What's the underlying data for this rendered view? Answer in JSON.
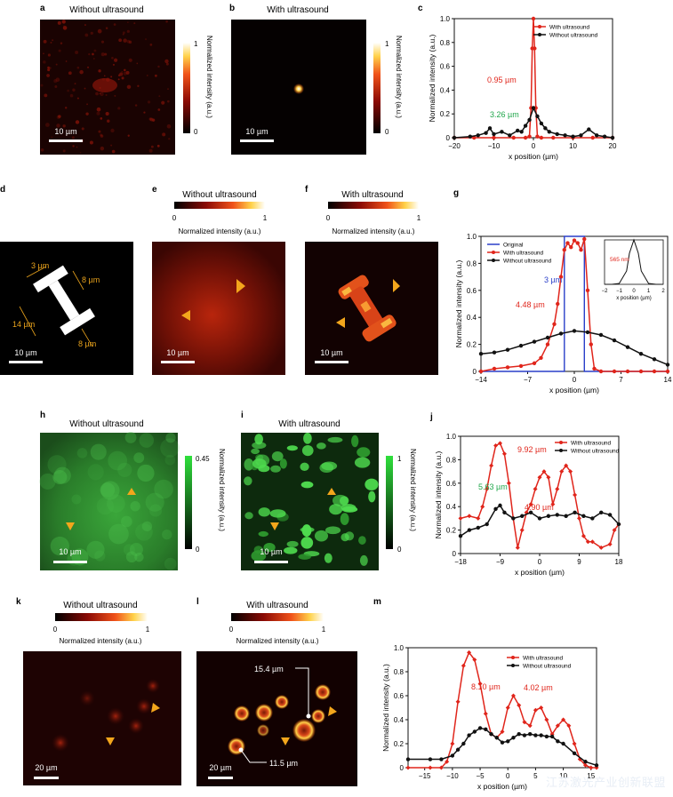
{
  "panels": {
    "a": {
      "letter": "a",
      "title": "Without ultrasound",
      "scale": "10 µm",
      "cb_max": "1",
      "cb_min": "0",
      "cb_label": "Normalized intensity (a.u.)"
    },
    "b": {
      "letter": "b",
      "title": "With ultrasound",
      "scale": "10 µm",
      "cb_max": "1",
      "cb_min": "0",
      "cb_label": "Normalized intensity (a.u.)"
    },
    "d": {
      "letter": "d",
      "scale": "10 µm",
      "dims": [
        "3 µm",
        "8 µm",
        "14 µm",
        "8 µm"
      ]
    },
    "e": {
      "letter": "e",
      "title": "Without ultrasound",
      "scale": "10 µm",
      "cb_min": "0",
      "cb_max": "1",
      "cb_label": "Normalized intensity (a.u.)"
    },
    "f": {
      "letter": "f",
      "title": "With ultrasound",
      "scale": "10 µm",
      "cb_min": "0",
      "cb_max": "1",
      "cb_label": "Normalized intensity (a.u.)"
    },
    "h": {
      "letter": "h",
      "title": "Without ultrasound",
      "scale": "10 µm",
      "cb_max": "0.45",
      "cb_min": "0",
      "cb_label": "Normalized intensity (a.u.)"
    },
    "i": {
      "letter": "i",
      "title": "With ultrasound",
      "scale": "10 µm",
      "cb_max": "1",
      "cb_min": "0",
      "cb_label": "Normalized intensity (a.u.)"
    },
    "k": {
      "letter": "k",
      "title": "Without ultrasound",
      "scale": "20 µm",
      "cb_min": "0",
      "cb_max": "1",
      "cb_label": "Normalized intensity (a.u.)"
    },
    "l": {
      "letter": "l",
      "title": "With ultrasound",
      "scale": "20 µm",
      "cb_min": "0",
      "cb_max": "1",
      "cb_label": "Normalized intensity (a.u.)",
      "callouts": [
        "15.4 µm",
        "11.5 µm"
      ]
    }
  },
  "watermark": "江苏激光产业创新联盟",
  "chart_data": [
    {
      "id": "c",
      "letter": "c",
      "type": "line",
      "xlabel": "x position (µm)",
      "ylabel": "Normalized intensity (a.u.)",
      "xlim": [
        -20,
        20
      ],
      "ylim": [
        0,
        1.0
      ],
      "xticks": [
        -20,
        -10,
        0,
        10,
        20
      ],
      "yticks": [
        0,
        0.2,
        0.4,
        0.6,
        0.8,
        1.0
      ],
      "series": [
        {
          "name": "With ultrasound",
          "color": "#e0251b",
          "x": [
            -20,
            -15,
            -10,
            -5,
            -2,
            -1,
            -0.6,
            -0.3,
            0,
            0.3,
            0.6,
            1,
            2,
            5,
            10,
            15,
            20
          ],
          "y": [
            0,
            0,
            0,
            0,
            0,
            0.01,
            0.25,
            0.75,
            1.0,
            0.75,
            0.25,
            0.01,
            0,
            0,
            0,
            0,
            0
          ]
        },
        {
          "name": "Without ultrasound",
          "color": "#111111",
          "x": [
            -20,
            -16,
            -14,
            -12,
            -11,
            -10,
            -8,
            -6,
            -4,
            -3,
            -2,
            -1,
            0,
            1,
            2,
            3,
            4,
            6,
            8,
            10,
            12,
            14,
            16,
            18,
            20
          ],
          "y": [
            0,
            0.01,
            0.02,
            0.04,
            0.08,
            0.03,
            0.05,
            0.02,
            0.06,
            0.05,
            0.1,
            0.15,
            0.25,
            0.18,
            0.12,
            0.08,
            0.05,
            0.03,
            0.02,
            0.01,
            0.02,
            0.07,
            0.02,
            0.01,
            0
          ]
        }
      ],
      "annotations": [
        {
          "text": "0.95 µm",
          "color": "#e0251b"
        },
        {
          "text": "3.26 µm",
          "color": "#1fa64a"
        }
      ]
    },
    {
      "id": "g",
      "letter": "g",
      "type": "line",
      "xlabel": "x position (µm)",
      "ylabel": "Normalized intensity (a.u.)",
      "xlim": [
        -14,
        14
      ],
      "ylim": [
        0,
        1.0
      ],
      "xticks": [
        -14,
        -7,
        0,
        7,
        14
      ],
      "yticks": [
        0,
        0.2,
        0.4,
        0.6,
        0.8,
        1.0
      ],
      "series": [
        {
          "name": "Original",
          "color": "#2a3fc9",
          "x": [
            -14,
            -1.5,
            -1.5,
            1.5,
            1.5,
            14
          ],
          "y": [
            0,
            0,
            1,
            1,
            0,
            0
          ]
        },
        {
          "name": "With ultrasound",
          "color": "#e0251b",
          "x": [
            -14,
            -12,
            -10,
            -8,
            -6,
            -5,
            -4,
            -3,
            -2.5,
            -2,
            -1.5,
            -1,
            -0.5,
            0,
            0.5,
            1,
            1.5,
            2,
            2.5,
            3,
            4,
            6,
            8,
            10,
            12,
            14
          ],
          "y": [
            0,
            0.02,
            0.03,
            0.04,
            0.06,
            0.1,
            0.2,
            0.35,
            0.5,
            0.7,
            0.9,
            0.95,
            0.92,
            0.97,
            0.95,
            0.9,
            0.98,
            0.6,
            0.2,
            0.02,
            0,
            0,
            0,
            0,
            0,
            0
          ]
        },
        {
          "name": "Without ultrasound",
          "color": "#111111",
          "x": [
            -14,
            -12,
            -10,
            -8,
            -6,
            -4,
            -2,
            0,
            2,
            4,
            6,
            8,
            10,
            12,
            14
          ],
          "y": [
            0.13,
            0.14,
            0.16,
            0.19,
            0.22,
            0.25,
            0.28,
            0.3,
            0.29,
            0.27,
            0.23,
            0.18,
            0.13,
            0.09,
            0.05
          ]
        }
      ],
      "annotations": [
        {
          "text": "3 µm",
          "color": "#2a3fc9"
        },
        {
          "text": "4.48 µm",
          "color": "#e0251b"
        }
      ],
      "inset": {
        "xlabel": "x position (µm)",
        "xlim": [
          -2,
          2
        ],
        "xticks": [
          -2,
          -1,
          0,
          1,
          2
        ],
        "label": "565 nm",
        "x": [
          -2,
          -1.5,
          -1,
          -0.5,
          -0.3,
          0,
          0.3,
          0.5,
          1,
          1.5,
          2
        ],
        "y": [
          0,
          0,
          0.02,
          0.3,
          0.7,
          1.0,
          0.7,
          0.3,
          0.02,
          0,
          0
        ]
      }
    },
    {
      "id": "j",
      "letter": "j",
      "type": "line",
      "xlabel": "x position (µm)",
      "ylabel": "Normalized intensity (a.u.)",
      "xlim": [
        -18,
        18
      ],
      "ylim": [
        0,
        1.0
      ],
      "xticks": [
        -18,
        -9,
        0,
        9,
        18
      ],
      "yticks": [
        0,
        0.2,
        0.4,
        0.6,
        0.8,
        1.0
      ],
      "series": [
        {
          "name": "With ultrasound",
          "color": "#e0251b",
          "x": [
            -18,
            -16,
            -14,
            -13,
            -12,
            -11,
            -10,
            -9,
            -8,
            -7,
            -6,
            -5,
            -4,
            -3,
            -2,
            -1,
            0,
            1,
            2,
            3,
            4,
            5,
            6,
            7,
            8,
            9,
            10,
            11,
            12,
            14,
            16,
            17,
            18
          ],
          "y": [
            0.3,
            0.32,
            0.3,
            0.4,
            0.55,
            0.75,
            0.92,
            0.94,
            0.85,
            0.6,
            0.3,
            0.05,
            0.2,
            0.35,
            0.42,
            0.55,
            0.65,
            0.7,
            0.65,
            0.42,
            0.55,
            0.7,
            0.75,
            0.7,
            0.5,
            0.3,
            0.15,
            0.1,
            0.1,
            0.05,
            0.08,
            0.2,
            0.25
          ]
        },
        {
          "name": "Without ultrasound",
          "color": "#111111",
          "x": [
            -18,
            -16,
            -14,
            -12,
            -10,
            -9,
            -8,
            -6,
            -4,
            -2,
            0,
            2,
            4,
            6,
            8,
            10,
            12,
            14,
            16,
            18
          ],
          "y": [
            0.15,
            0.2,
            0.22,
            0.25,
            0.38,
            0.41,
            0.35,
            0.3,
            0.32,
            0.35,
            0.3,
            0.32,
            0.33,
            0.32,
            0.35,
            0.32,
            0.3,
            0.35,
            0.33,
            0.25
          ]
        }
      ],
      "annotations": [
        {
          "text": "9.92 µm",
          "color": "#e0251b"
        },
        {
          "text": "5.63 µm",
          "color": "#1fa64a"
        },
        {
          "text": "4.90 µm",
          "color": "#e0251b"
        }
      ]
    },
    {
      "id": "m",
      "letter": "m",
      "type": "line",
      "xlabel": "x position (µm)",
      "ylabel": "Normalized intensity (a.u.)",
      "xlim": [
        -18,
        16
      ],
      "ylim": [
        0,
        1.0
      ],
      "xticks": [
        -15,
        -10,
        -5,
        0,
        5,
        10,
        15
      ],
      "yticks": [
        0,
        0.2,
        0.4,
        0.6,
        0.8,
        1.0
      ],
      "series": [
        {
          "name": "With ultrasound",
          "color": "#e0251b",
          "x": [
            -18,
            -14,
            -12,
            -11,
            -10,
            -9,
            -8,
            -7,
            -6,
            -5,
            -4,
            -3,
            -2,
            -1,
            0,
            1,
            2,
            3,
            4,
            5,
            6,
            7,
            8,
            9,
            10,
            11,
            12,
            13,
            14,
            15,
            16
          ],
          "y": [
            0,
            0,
            0,
            0.05,
            0.2,
            0.55,
            0.85,
            0.96,
            0.9,
            0.7,
            0.45,
            0.28,
            0.25,
            0.3,
            0.5,
            0.6,
            0.52,
            0.38,
            0.35,
            0.48,
            0.5,
            0.4,
            0.28,
            0.35,
            0.4,
            0.35,
            0.2,
            0.07,
            0.02,
            0,
            0
          ]
        },
        {
          "name": "Without ultrasound",
          "color": "#111111",
          "x": [
            -18,
            -14,
            -12,
            -10,
            -9,
            -8,
            -7,
            -6,
            -5,
            -4,
            -3,
            -2,
            -1,
            0,
            1,
            2,
            3,
            4,
            5,
            6,
            7,
            8,
            9,
            10,
            12,
            14,
            16
          ],
          "y": [
            0.07,
            0.07,
            0.07,
            0.1,
            0.15,
            0.2,
            0.27,
            0.3,
            0.33,
            0.32,
            0.28,
            0.25,
            0.21,
            0.22,
            0.25,
            0.28,
            0.27,
            0.28,
            0.27,
            0.27,
            0.26,
            0.26,
            0.22,
            0.2,
            0.12,
            0.05,
            0.02
          ]
        }
      ],
      "annotations": [
        {
          "text": "8.10 µm",
          "color": "#e0251b"
        },
        {
          "text": "4.02 µm",
          "color": "#e0251b"
        }
      ]
    }
  ]
}
